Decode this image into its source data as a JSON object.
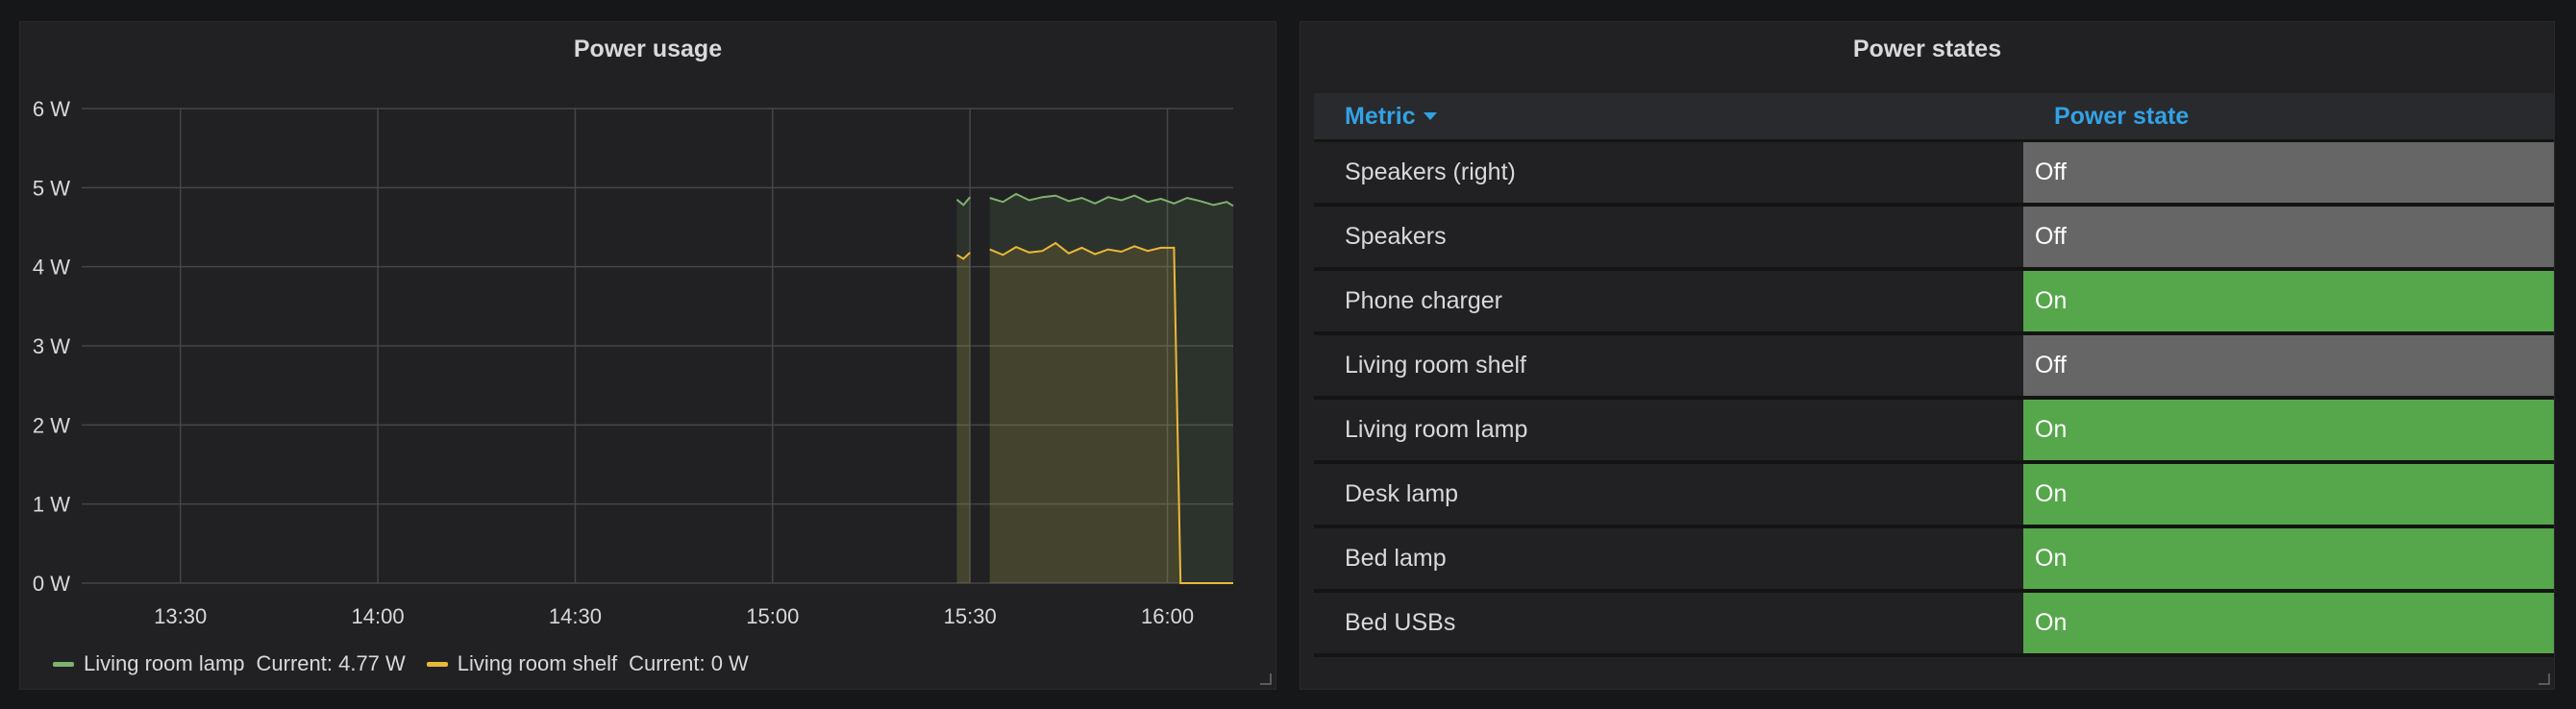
{
  "left_panel": {
    "title": "Power usage"
  },
  "right_panel": {
    "title": "Power states",
    "columns": {
      "metric": "Metric",
      "state": "Power state"
    },
    "rows": [
      {
        "name": "Speakers (right)",
        "state": "Off",
        "color": "#666666"
      },
      {
        "name": "Speakers",
        "state": "Off",
        "color": "#666666"
      },
      {
        "name": "Phone charger",
        "state": "On",
        "color": "#56a64b"
      },
      {
        "name": "Living room shelf",
        "state": "Off",
        "color": "#666666"
      },
      {
        "name": "Living room lamp",
        "state": "On",
        "color": "#56a64b"
      },
      {
        "name": "Desk lamp",
        "state": "On",
        "color": "#56a64b"
      },
      {
        "name": "Bed lamp",
        "state": "On",
        "color": "#56a64b"
      },
      {
        "name": "Bed USBs",
        "state": "On",
        "color": "#56a64b"
      }
    ]
  },
  "chart_data": {
    "type": "line",
    "title": "Power usage",
    "x_start": "13:15",
    "x_end": "16:10",
    "x_ticks": [
      "13:30",
      "14:00",
      "14:30",
      "15:00",
      "15:30",
      "16:00"
    ],
    "y_ticks": [
      "0 W",
      "1 W",
      "2 W",
      "3 W",
      "4 W",
      "5 W",
      "6 W"
    ],
    "ylim": [
      0,
      6
    ],
    "grid": true,
    "legend_position": "bottom-left",
    "series": [
      {
        "name": "Living room lamp",
        "current": "Current: 4.77 W",
        "color": "#7eb26d",
        "points": [
          [
            "15:28",
            4.85
          ],
          [
            "15:29",
            4.78
          ],
          [
            "15:30",
            4.88
          ],
          [
            "15:33",
            4.87
          ],
          [
            "15:35",
            4.82
          ],
          [
            "15:37",
            4.92
          ],
          [
            "15:39",
            4.84
          ],
          [
            "15:41",
            4.88
          ],
          [
            "15:43",
            4.9
          ],
          [
            "15:45",
            4.83
          ],
          [
            "15:47",
            4.87
          ],
          [
            "15:49",
            4.8
          ],
          [
            "15:51",
            4.88
          ],
          [
            "15:53",
            4.84
          ],
          [
            "15:55",
            4.9
          ],
          [
            "15:57",
            4.82
          ],
          [
            "15:59",
            4.86
          ],
          [
            "16:01",
            4.8
          ],
          [
            "16:03",
            4.87
          ],
          [
            "16:05",
            4.83
          ],
          [
            "16:07",
            4.78
          ],
          [
            "16:09",
            4.82
          ],
          [
            "16:10",
            4.77
          ]
        ]
      },
      {
        "name": "Living room shelf",
        "current": "Current: 0 W",
        "color": "#eab839",
        "points": [
          [
            "15:28",
            4.15
          ],
          [
            "15:29",
            4.1
          ],
          [
            "15:30",
            4.18
          ],
          [
            "15:33",
            4.22
          ],
          [
            "15:35",
            4.15
          ],
          [
            "15:37",
            4.25
          ],
          [
            "15:39",
            4.18
          ],
          [
            "15:41",
            4.2
          ],
          [
            "15:43",
            4.3
          ],
          [
            "15:45",
            4.17
          ],
          [
            "15:47",
            4.24
          ],
          [
            "15:49",
            4.16
          ],
          [
            "15:51",
            4.22
          ],
          [
            "15:53",
            4.19
          ],
          [
            "15:55",
            4.26
          ],
          [
            "15:57",
            4.2
          ],
          [
            "15:59",
            4.24
          ],
          [
            "16:01",
            4.24
          ],
          [
            "16:02",
            0
          ],
          [
            "16:05",
            0
          ],
          [
            "16:10",
            0
          ]
        ]
      }
    ]
  }
}
